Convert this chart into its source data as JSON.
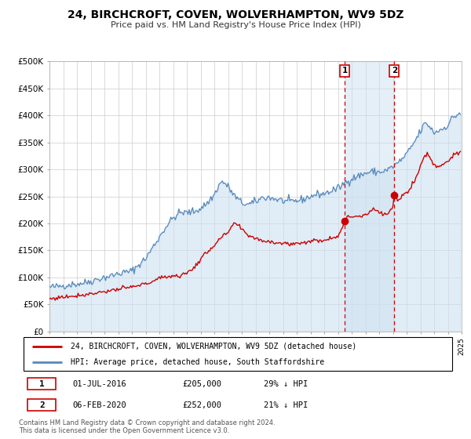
{
  "title": "24, BIRCHCROFT, COVEN, WOLVERHAMPTON, WV9 5DZ",
  "subtitle": "Price paid vs. HM Land Registry's House Price Index (HPI)",
  "legend_line1": "24, BIRCHCROFT, COVEN, WOLVERHAMPTON, WV9 5DZ (detached house)",
  "legend_line2": "HPI: Average price, detached house, South Staffordshire",
  "footer1": "Contains HM Land Registry data © Crown copyright and database right 2024.",
  "footer2": "This data is licensed under the Open Government Licence v3.0.",
  "marker1_date": "01-JUL-2016",
  "marker1_price": "£205,000",
  "marker1_hpi": "29% ↓ HPI",
  "marker1_x": 2016.5,
  "marker1_y": 205000,
  "marker2_date": "06-FEB-2020",
  "marker2_price": "£252,000",
  "marker2_hpi": "21% ↓ HPI",
  "marker2_x": 2020.1,
  "marker2_y": 252000,
  "red_color": "#cc0000",
  "blue_color": "#5588bb",
  "blue_fill_color": "#cce0f0",
  "ylim": [
    0,
    500000
  ],
  "yticks": [
    0,
    50000,
    100000,
    150000,
    200000,
    250000,
    300000,
    350000,
    400000,
    450000,
    500000
  ],
  "ytick_labels": [
    "£0",
    "£50K",
    "£100K",
    "£150K",
    "£200K",
    "£250K",
    "£300K",
    "£350K",
    "£400K",
    "£450K",
    "£500K"
  ],
  "xmin": 1995,
  "xmax": 2025,
  "hpi_anchors": [
    [
      1995.0,
      82000
    ],
    [
      1995.5,
      83000
    ],
    [
      1996.0,
      85000
    ],
    [
      1996.5,
      87000
    ],
    [
      1997.0,
      88000
    ],
    [
      1997.5,
      90000
    ],
    [
      1998.0,
      93000
    ],
    [
      1998.5,
      97000
    ],
    [
      1999.0,
      100000
    ],
    [
      1999.5,
      103000
    ],
    [
      2000.0,
      107000
    ],
    [
      2001.0,
      112000
    ],
    [
      2002.0,
      135000
    ],
    [
      2002.5,
      155000
    ],
    [
      2003.0,
      175000
    ],
    [
      2003.5,
      195000
    ],
    [
      2004.0,
      210000
    ],
    [
      2004.5,
      220000
    ],
    [
      2005.0,
      220000
    ],
    [
      2005.5,
      222000
    ],
    [
      2006.0,
      228000
    ],
    [
      2006.5,
      238000
    ],
    [
      2007.0,
      253000
    ],
    [
      2007.3,
      270000
    ],
    [
      2007.6,
      278000
    ],
    [
      2008.0,
      268000
    ],
    [
      2008.5,
      250000
    ],
    [
      2009.0,
      238000
    ],
    [
      2009.5,
      235000
    ],
    [
      2010.0,
      240000
    ],
    [
      2010.5,
      248000
    ],
    [
      2011.0,
      248000
    ],
    [
      2011.5,
      245000
    ],
    [
      2012.0,
      242000
    ],
    [
      2012.5,
      240000
    ],
    [
      2013.0,
      242000
    ],
    [
      2013.5,
      245000
    ],
    [
      2014.0,
      250000
    ],
    [
      2014.5,
      254000
    ],
    [
      2015.0,
      255000
    ],
    [
      2015.5,
      260000
    ],
    [
      2016.0,
      265000
    ],
    [
      2016.5,
      275000
    ],
    [
      2017.0,
      283000
    ],
    [
      2017.5,
      288000
    ],
    [
      2018.0,
      293000
    ],
    [
      2018.5,
      296000
    ],
    [
      2019.0,
      295000
    ],
    [
      2019.5,
      298000
    ],
    [
      2020.0,
      305000
    ],
    [
      2020.5,
      315000
    ],
    [
      2021.0,
      328000
    ],
    [
      2021.5,
      348000
    ],
    [
      2022.0,
      370000
    ],
    [
      2022.3,
      385000
    ],
    [
      2022.6,
      382000
    ],
    [
      2023.0,
      368000
    ],
    [
      2023.3,
      372000
    ],
    [
      2023.6,
      375000
    ],
    [
      2024.0,
      382000
    ],
    [
      2024.3,
      395000
    ],
    [
      2024.6,
      400000
    ],
    [
      2024.9,
      405000
    ]
  ],
  "red_anchors": [
    [
      1995.0,
      60000
    ],
    [
      1995.5,
      62000
    ],
    [
      1996.0,
      64000
    ],
    [
      1996.5,
      65000
    ],
    [
      1997.0,
      67000
    ],
    [
      1997.5,
      68000
    ],
    [
      1998.0,
      70000
    ],
    [
      1998.5,
      72000
    ],
    [
      1999.0,
      74000
    ],
    [
      1999.5,
      76000
    ],
    [
      2000.0,
      78000
    ],
    [
      2001.0,
      82000
    ],
    [
      2002.0,
      88000
    ],
    [
      2002.5,
      93000
    ],
    [
      2003.0,
      98000
    ],
    [
      2003.5,
      102000
    ],
    [
      2004.0,
      103000
    ],
    [
      2004.5,
      103000
    ],
    [
      2005.0,
      108000
    ],
    [
      2005.5,
      118000
    ],
    [
      2006.0,
      133000
    ],
    [
      2006.5,
      148000
    ],
    [
      2007.0,
      160000
    ],
    [
      2007.5,
      173000
    ],
    [
      2008.0,
      183000
    ],
    [
      2008.3,
      195000
    ],
    [
      2008.6,
      200000
    ],
    [
      2009.0,
      188000
    ],
    [
      2009.5,
      178000
    ],
    [
      2010.0,
      173000
    ],
    [
      2010.5,
      168000
    ],
    [
      2011.0,
      167000
    ],
    [
      2011.5,
      165000
    ],
    [
      2012.0,
      163000
    ],
    [
      2012.5,
      162000
    ],
    [
      2013.0,
      163000
    ],
    [
      2013.5,
      165000
    ],
    [
      2014.0,
      167000
    ],
    [
      2014.5,
      168000
    ],
    [
      2015.0,
      170000
    ],
    [
      2015.5,
      173000
    ],
    [
      2016.0,
      178000
    ],
    [
      2016.4,
      195000
    ],
    [
      2016.5,
      205000
    ],
    [
      2016.7,
      210000
    ],
    [
      2017.0,
      213000
    ],
    [
      2017.3,
      215000
    ],
    [
      2017.6,
      213000
    ],
    [
      2018.0,
      217000
    ],
    [
      2018.3,
      222000
    ],
    [
      2018.6,
      228000
    ],
    [
      2019.0,
      220000
    ],
    [
      2019.3,
      216000
    ],
    [
      2019.6,
      218000
    ],
    [
      2020.0,
      228000
    ],
    [
      2020.1,
      252000
    ],
    [
      2020.3,
      245000
    ],
    [
      2020.6,
      248000
    ],
    [
      2021.0,
      258000
    ],
    [
      2021.3,
      268000
    ],
    [
      2021.6,
      280000
    ],
    [
      2022.0,
      305000
    ],
    [
      2022.3,
      325000
    ],
    [
      2022.5,
      330000
    ],
    [
      2022.7,
      322000
    ],
    [
      2023.0,
      308000
    ],
    [
      2023.3,
      305000
    ],
    [
      2023.6,
      310000
    ],
    [
      2024.0,
      315000
    ],
    [
      2024.3,
      325000
    ],
    [
      2024.6,
      328000
    ],
    [
      2024.9,
      330000
    ]
  ]
}
